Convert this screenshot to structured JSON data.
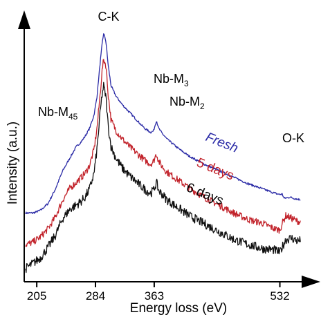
{
  "chart_data": {
    "type": "line",
    "title": "",
    "xlabel": "Energy loss (eV)",
    "ylabel": "Intensity (a.u.)",
    "x_ticks": [
      "205",
      "284",
      "363",
      "532"
    ],
    "xlim": [
      190,
      565
    ],
    "ylim": [
      0,
      100
    ],
    "grid": false,
    "legend": "inline labels",
    "y_tick_labels": false,
    "annotations": {
      "ck": "C-K",
      "nb_m45": {
        "main": "Nb-M",
        "sub": "45"
      },
      "nb_m3": {
        "main": "Nb-M",
        "sub": "3"
      },
      "nb_m2": {
        "main": "Nb-M",
        "sub": "2"
      },
      "ok": "O-K"
    },
    "series": [
      {
        "name": "Fresh",
        "color": "#2a2aa6",
        "noise": 0.4,
        "points": [
          [
            190,
            26
          ],
          [
            200,
            26
          ],
          [
            210,
            27
          ],
          [
            220,
            29.5
          ],
          [
            230,
            35
          ],
          [
            240,
            42
          ],
          [
            250,
            47
          ],
          [
            258,
            51
          ],
          [
            265,
            53
          ],
          [
            270,
            55
          ],
          [
            276,
            58
          ],
          [
            282,
            63
          ],
          [
            286,
            70
          ],
          [
            290,
            82
          ],
          [
            293,
            90
          ],
          [
            295,
            94
          ],
          [
            298,
            91
          ],
          [
            301,
            82
          ],
          [
            305,
            74
          ],
          [
            312,
            70
          ],
          [
            320,
            67
          ],
          [
            330,
            64
          ],
          [
            340,
            61
          ],
          [
            350,
            58
          ],
          [
            358,
            56.5
          ],
          [
            362,
            57
          ],
          [
            366,
            61
          ],
          [
            369,
            58
          ],
          [
            374,
            56
          ],
          [
            380,
            54
          ],
          [
            395,
            50.5
          ],
          [
            410,
            47.5
          ],
          [
            430,
            44.5
          ],
          [
            450,
            42
          ],
          [
            470,
            39.5
          ],
          [
            490,
            37
          ],
          [
            510,
            35
          ],
          [
            525,
            33.5
          ],
          [
            532,
            33
          ],
          [
            535,
            33.2
          ],
          [
            538,
            31.5
          ],
          [
            545,
            32
          ],
          [
            552,
            31.5
          ],
          [
            560,
            31
          ]
        ]
      },
      {
        "name": "5 days",
        "color": "#c2232b",
        "noise": 1.3,
        "points": [
          [
            190,
            14
          ],
          [
            200,
            15
          ],
          [
            210,
            17
          ],
          [
            220,
            20
          ],
          [
            230,
            24.5
          ],
          [
            240,
            31
          ],
          [
            250,
            35.5
          ],
          [
            258,
            37.5
          ],
          [
            265,
            39.5
          ],
          [
            270,
            41
          ],
          [
            276,
            44
          ],
          [
            282,
            50
          ],
          [
            286,
            58
          ],
          [
            290,
            70
          ],
          [
            293,
            80
          ],
          [
            295,
            84
          ],
          [
            298,
            82
          ],
          [
            301,
            71
          ],
          [
            305,
            61
          ],
          [
            312,
            57
          ],
          [
            320,
            54
          ],
          [
            330,
            51
          ],
          [
            340,
            48.5
          ],
          [
            350,
            46
          ],
          [
            358,
            44.5
          ],
          [
            362,
            45.5
          ],
          [
            366,
            48.5
          ],
          [
            369,
            45.5
          ],
          [
            374,
            43.5
          ],
          [
            380,
            41.5
          ],
          [
            395,
            38.5
          ],
          [
            410,
            35.5
          ],
          [
            430,
            32
          ],
          [
            450,
            29
          ],
          [
            470,
            26
          ],
          [
            490,
            23.5
          ],
          [
            510,
            22
          ],
          [
            525,
            20
          ],
          [
            532,
            19.5
          ],
          [
            535,
            22
          ],
          [
            540,
            25
          ],
          [
            548,
            24
          ],
          [
            555,
            23
          ],
          [
            560,
            22.5
          ]
        ]
      },
      {
        "name": "6 days",
        "color": "#101010",
        "noise": 1.7,
        "points": [
          [
            190,
            5
          ],
          [
            200,
            7
          ],
          [
            210,
            9
          ],
          [
            220,
            13
          ],
          [
            230,
            17.5
          ],
          [
            240,
            24
          ],
          [
            250,
            27.5
          ],
          [
            258,
            29
          ],
          [
            265,
            30.5
          ],
          [
            270,
            32
          ],
          [
            276,
            35
          ],
          [
            282,
            41
          ],
          [
            286,
            50
          ],
          [
            290,
            63
          ],
          [
            293,
            71
          ],
          [
            295,
            74
          ],
          [
            298,
            70
          ],
          [
            301,
            59
          ],
          [
            305,
            51
          ],
          [
            312,
            46.5
          ],
          [
            320,
            43
          ],
          [
            330,
            40
          ],
          [
            340,
            37.5
          ],
          [
            350,
            35
          ],
          [
            358,
            33.5
          ],
          [
            362,
            34.5
          ],
          [
            366,
            37.5
          ],
          [
            369,
            34.5
          ],
          [
            374,
            33
          ],
          [
            380,
            31
          ],
          [
            395,
            28
          ],
          [
            410,
            25
          ],
          [
            430,
            22
          ],
          [
            450,
            19
          ],
          [
            470,
            16
          ],
          [
            490,
            14
          ],
          [
            510,
            12.5
          ],
          [
            525,
            12
          ],
          [
            532,
            11
          ],
          [
            535,
            13
          ],
          [
            540,
            16
          ],
          [
            548,
            16.5
          ],
          [
            555,
            15.5
          ],
          [
            560,
            15.5
          ]
        ]
      }
    ]
  }
}
